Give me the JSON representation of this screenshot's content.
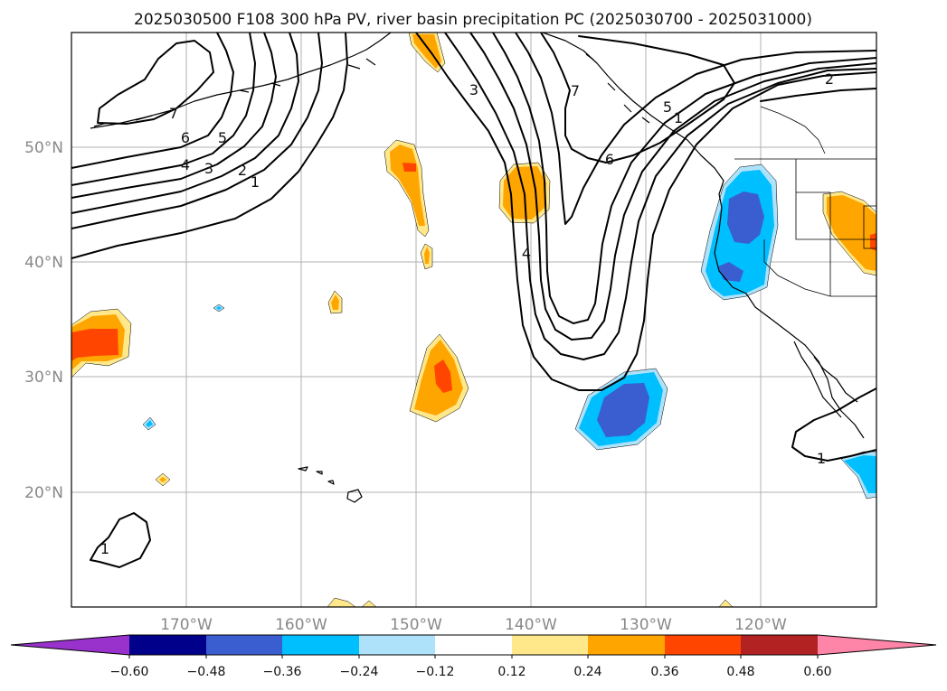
{
  "title": "2025030500 F108 300 hPa PV, river basin precipitation PC (2025030700 - 2025031000)",
  "map": {
    "lon_ticks": [
      "170°W",
      "160°W",
      "150°W",
      "140°W",
      "130°W",
      "120°W"
    ],
    "lat_ticks": [
      "50°N",
      "40°N",
      "30°N",
      "20°N"
    ],
    "gridlines": true
  },
  "pv_contour_labels": [
    "1",
    "2",
    "3",
    "4",
    "5",
    "6",
    "7",
    "7",
    "6",
    "5",
    "4",
    "3",
    "2",
    "1",
    "1",
    "1",
    "2",
    "5"
  ],
  "colorbar": {
    "ticks": [
      "−0.60",
      "−0.48",
      "−0.36",
      "−0.24",
      "−0.12",
      "0.12",
      "0.24",
      "0.36",
      "0.48",
      "0.60"
    ],
    "colors": [
      "#9932cc",
      "#00008b",
      "#3a5ed0",
      "#00bfff",
      "#aee2fa",
      "#ffffff",
      "#ffe88a",
      "#ffa500",
      "#ff4500",
      "#b22222",
      "#ff85a8"
    ],
    "extend": "both"
  },
  "fill_colors": {
    "light_yellow": "#ffe88a",
    "orange": "#ffa500",
    "red_orange": "#ff4500",
    "light_blue": "#aee2fa",
    "cyan": "#00bfff",
    "royal_blue": "#3a5ed0"
  }
}
